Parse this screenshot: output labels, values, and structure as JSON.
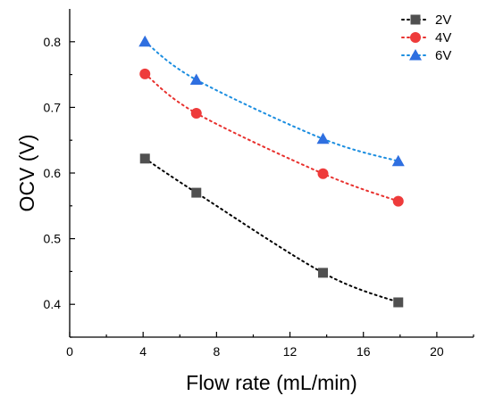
{
  "chart_data": {
    "type": "scatter",
    "xlabel": "Flow rate (mL/min)",
    "ylabel": "OCV (V)",
    "xlim": [
      0,
      22
    ],
    "ylim": [
      0.35,
      0.85
    ],
    "x_ticks": [
      0,
      4,
      8,
      12,
      16,
      20
    ],
    "y_ticks": [
      0.4,
      0.5,
      0.6,
      0.7,
      0.8
    ],
    "legend_position": "top-right",
    "series": [
      {
        "name": "2V",
        "marker": "square",
        "color": "#505050",
        "line_color": "#000000",
        "x": [
          4.1,
          6.9,
          13.8,
          17.9
        ],
        "y": [
          0.622,
          0.57,
          0.448,
          0.403
        ]
      },
      {
        "name": "4V",
        "marker": "circle",
        "color": "#ee3b3b",
        "line_color": "#e8322f",
        "x": [
          4.1,
          6.9,
          13.8,
          17.9
        ],
        "y": [
          0.751,
          0.691,
          0.599,
          0.557
        ]
      },
      {
        "name": "6V",
        "marker": "triangle",
        "color": "#2f6fe0",
        "line_color": "#1c8ee0",
        "x": [
          4.1,
          6.9,
          13.8,
          17.9
        ],
        "y": [
          0.8,
          0.742,
          0.652,
          0.618
        ]
      }
    ]
  }
}
